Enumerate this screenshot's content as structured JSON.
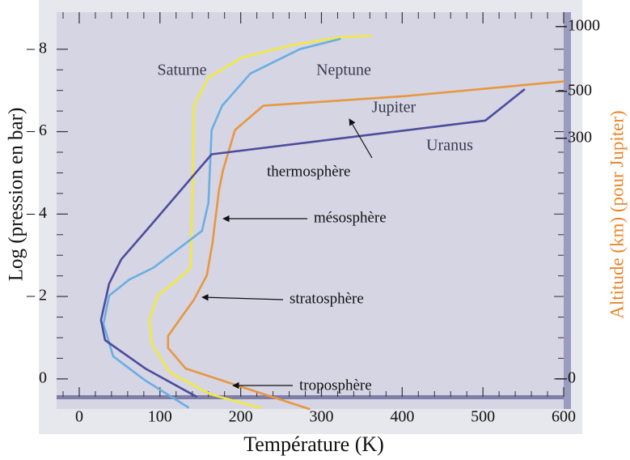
{
  "chart_data": {
    "type": "line",
    "x_label": "Température (K)",
    "y_label": "Log (pression en bar)",
    "y2_label": "Altitude (km) (pour Jupiter)",
    "xlim": [
      -28,
      600
    ],
    "xticks": [
      0,
      100,
      200,
      300,
      400,
      500,
      600
    ],
    "ylim": [
      0.73,
      -8.9
    ],
    "yticks": [
      0,
      {
        "value": -2,
        "label": "– 2"
      },
      {
        "value": -4,
        "label": "– 4"
      },
      {
        "value": -6,
        "label": "– 6"
      },
      {
        "value": -8,
        "label": "– 8"
      }
    ],
    "y2ticks": [
      {
        "value": 0,
        "log_pressure": 0
      },
      {
        "value": 300,
        "log_pressure": -5.84
      },
      {
        "value": 500,
        "log_pressure": -6.98
      },
      {
        "value": 1000,
        "log_pressure": -8.55
      }
    ],
    "series": [
      {
        "name": "Saturne",
        "color": "#f2ea3a",
        "x": [
          224,
          162,
          112,
          90,
          87,
          97,
          122,
          138,
          140,
          142,
          160,
          202,
          263,
          323,
          361
        ],
        "values": [
          0.7,
          0.37,
          -0.16,
          -0.84,
          -1.43,
          -2.02,
          -2.41,
          -2.7,
          -4.27,
          -6.63,
          -7.31,
          -7.8,
          -8.1,
          -8.29,
          -8.33
        ]
      },
      {
        "name": "Neptune",
        "color": "#6aaee2",
        "x": [
          135,
          82,
          42,
          30,
          37,
          62,
          92,
          152,
          160,
          164,
          177,
          212,
          273,
          323
        ],
        "values": [
          0.69,
          0.04,
          -0.55,
          -1.33,
          -2.02,
          -2.41,
          -2.7,
          -3.59,
          -4.27,
          -6.04,
          -6.63,
          -7.41,
          -8.0,
          -8.25
        ]
      },
      {
        "name": "Jupiter",
        "color": "#e9963e",
        "x": [
          285,
          202,
          132,
          110,
          110,
          124,
          142,
          158,
          165,
          173,
          178,
          193,
          228,
          402,
          600
        ],
        "values": [
          0.73,
          0.2,
          -0.25,
          -0.75,
          -1.04,
          -1.43,
          -1.92,
          -2.51,
          -3.29,
          -4.57,
          -5.06,
          -6.04,
          -6.63,
          -6.86,
          -7.22
        ]
      },
      {
        "name": "Uranus",
        "color": "#4c4c9e",
        "x": [
          145,
          82,
          32,
          27,
          37,
          52,
          87,
          164,
          503,
          551
        ],
        "values": [
          0.43,
          -0.25,
          -0.94,
          -1.43,
          -2.31,
          -2.9,
          -3.69,
          -5.45,
          -6.27,
          -7.02
        ]
      }
    ],
    "annotations": [
      "thermosphère",
      "mésosphère",
      "stratosphère",
      "troposphère"
    ]
  }
}
